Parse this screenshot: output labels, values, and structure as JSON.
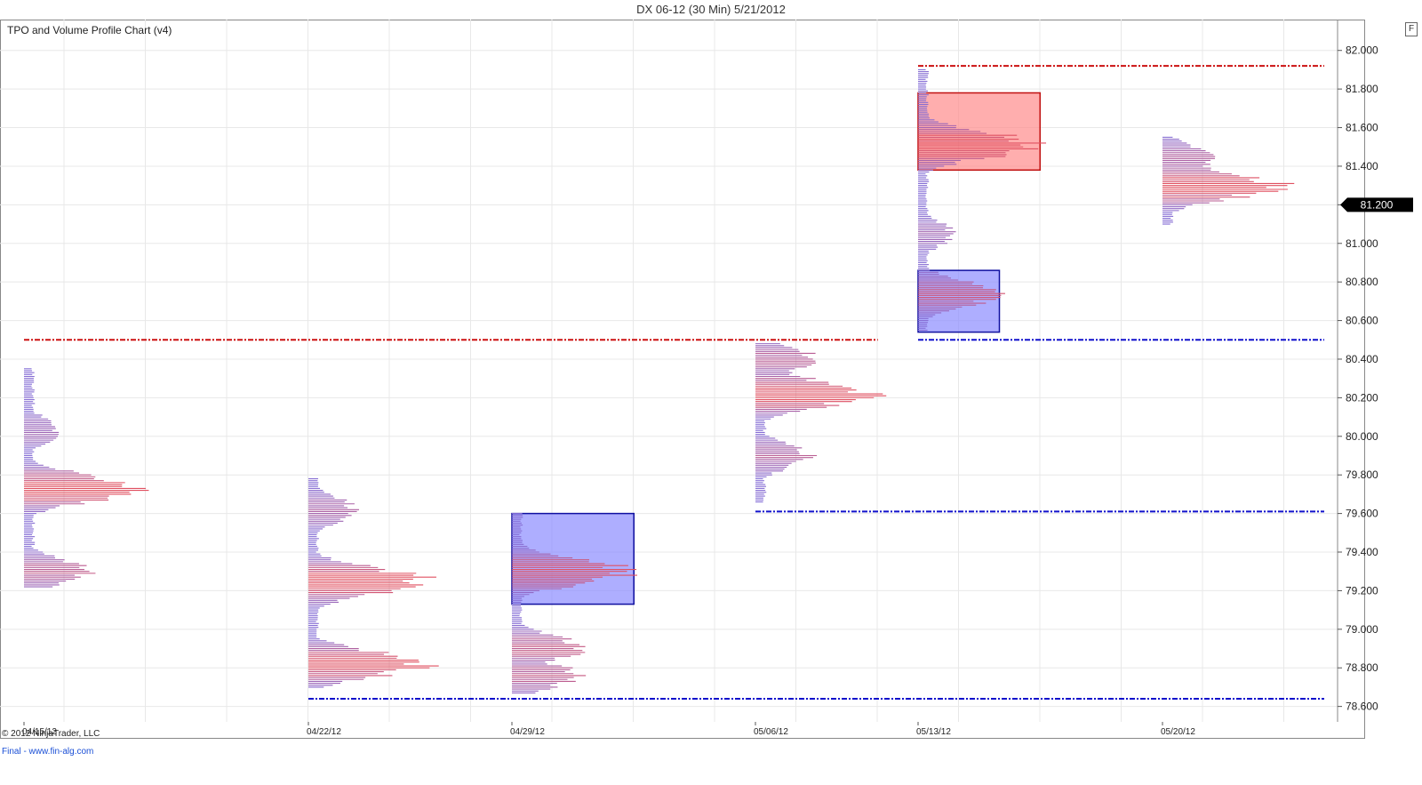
{
  "window": {
    "title": "DX 06-12 (30 Min)  5/21/2012",
    "f_button": "F",
    "copyright": "© 2012 NinjaTrader, LLC",
    "footer_link": "Final - www.fin-alg.com"
  },
  "chart_data": {
    "type": "tpo_volume_profile",
    "title": "TPO and Volume Profile Chart (v4)",
    "instrument": "DX 06-12",
    "interval": "30 Min",
    "date": "5/21/2012",
    "y_range": [
      78.52,
      82.16
    ],
    "y_ticks": [
      "82.000",
      "81.800",
      "81.600",
      "81.400",
      "81.200",
      "81.000",
      "80.800",
      "80.600",
      "80.400",
      "80.200",
      "80.000",
      "79.800",
      "79.600",
      "79.400",
      "79.200",
      "79.000",
      "78.800",
      "78.600"
    ],
    "current_price": "81.200",
    "x_ticks": [
      "04/15/12",
      "04/22/12",
      "04/29/12",
      "05/06/12",
      "05/13/12",
      "05/20/12"
    ],
    "grid": true,
    "colors": {
      "profile_low": "#7b6fe0",
      "profile_high": "#e05060",
      "value_area_red": "#ff8c8c",
      "value_area_blue": "#8c8cff",
      "resistance_line": "#cc1111",
      "support_line": "#1111cc"
    },
    "profiles": [
      {
        "week": "04/15/12",
        "y_top": 80.35,
        "y_bottom": 79.22,
        "peaks": [
          {
            "y": 79.73,
            "size": 1.0
          },
          {
            "y": 79.3,
            "size": 0.55
          },
          {
            "y": 80.03,
            "size": 0.3
          }
        ]
      },
      {
        "week": "04/22/12",
        "y_top": 79.78,
        "y_bottom": 78.7,
        "peaks": [
          {
            "y": 79.25,
            "size": 1.0
          },
          {
            "y": 78.82,
            "size": 0.97
          },
          {
            "y": 79.62,
            "size": 0.4
          }
        ]
      },
      {
        "week": "04/29/12",
        "y_top": 79.6,
        "y_bottom": 78.67,
        "peaks": [
          {
            "y": 79.3,
            "size": 1.0
          },
          {
            "y": 78.9,
            "size": 0.6
          },
          {
            "y": 78.76,
            "size": 0.55
          }
        ]
      },
      {
        "week": "05/06/12",
        "y_top": 80.48,
        "y_bottom": 79.66,
        "peaks": [
          {
            "y": 80.22,
            "size": 1.0
          },
          {
            "y": 79.9,
            "size": 0.45
          },
          {
            "y": 80.4,
            "size": 0.5
          }
        ]
      },
      {
        "week": "05/13/12",
        "y_top": 81.9,
        "y_bottom": 80.55,
        "peaks": [
          {
            "y": 81.51,
            "size": 1.0
          },
          {
            "y": 80.74,
            "size": 0.7
          },
          {
            "y": 81.05,
            "size": 0.3
          }
        ]
      },
      {
        "week": "05/20/12",
        "y_top": 81.55,
        "y_bottom": 81.1,
        "peaks": [
          {
            "y": 81.3,
            "size": 1.0
          },
          {
            "y": 81.44,
            "size": 0.45
          }
        ]
      }
    ],
    "value_areas": [
      {
        "color": "red",
        "week": "05/13/12",
        "y_top": 81.78,
        "y_bottom": 81.38,
        "x_end_week_offset": 1.5
      },
      {
        "color": "blue",
        "week": "05/13/12",
        "y_top": 80.86,
        "y_bottom": 80.54,
        "x_end_week_offset": 1.0
      },
      {
        "color": "blue",
        "week": "04/29/12",
        "y_top": 79.6,
        "y_bottom": 79.13,
        "x_end_week_offset": 1.5
      }
    ],
    "levels": [
      {
        "color": "red",
        "y": 81.92,
        "from_week": "05/13/12",
        "to": "end"
      },
      {
        "color": "red",
        "y": 80.5,
        "from_week": "04/15/12",
        "to_week_offset": 10.5
      },
      {
        "color": "blue",
        "y": 80.5,
        "from_week": "05/13/12",
        "to": "end"
      },
      {
        "color": "blue",
        "y": 79.61,
        "from_week": "05/06/12",
        "to": "end"
      },
      {
        "color": "blue",
        "y": 78.64,
        "from_week": "04/22/12",
        "to": "end"
      }
    ]
  }
}
